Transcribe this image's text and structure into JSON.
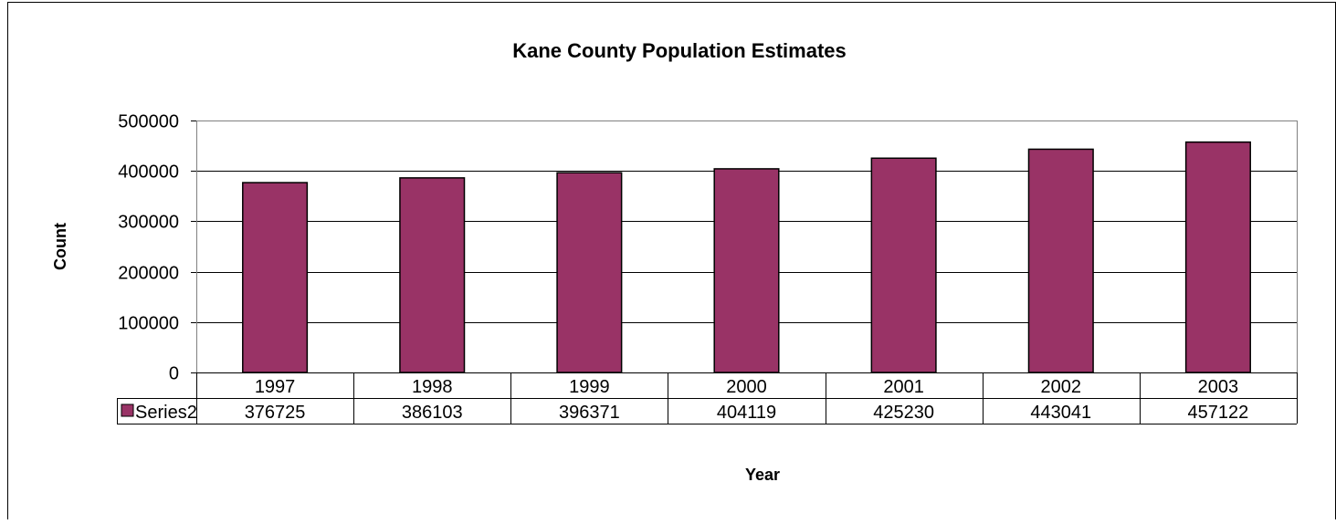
{
  "chart_data": {
    "type": "bar",
    "title": "Kane County Population Estimates",
    "xlabel": "Year",
    "ylabel": "Count",
    "categories": [
      "1997",
      "1998",
      "1999",
      "2000",
      "2001",
      "2002",
      "2003"
    ],
    "series": [
      {
        "name": "Series2",
        "values": [
          376725,
          386103,
          396371,
          404119,
          425230,
          443041,
          457122
        ]
      }
    ],
    "yticks": [
      "0",
      "100000",
      "200000",
      "300000",
      "400000",
      "500000"
    ],
    "ylim": [
      0,
      500000
    ],
    "grid": true,
    "data_table": true,
    "colors": {
      "bar": "#993366",
      "gridline": "#000000",
      "plot_border": "#808080"
    }
  }
}
